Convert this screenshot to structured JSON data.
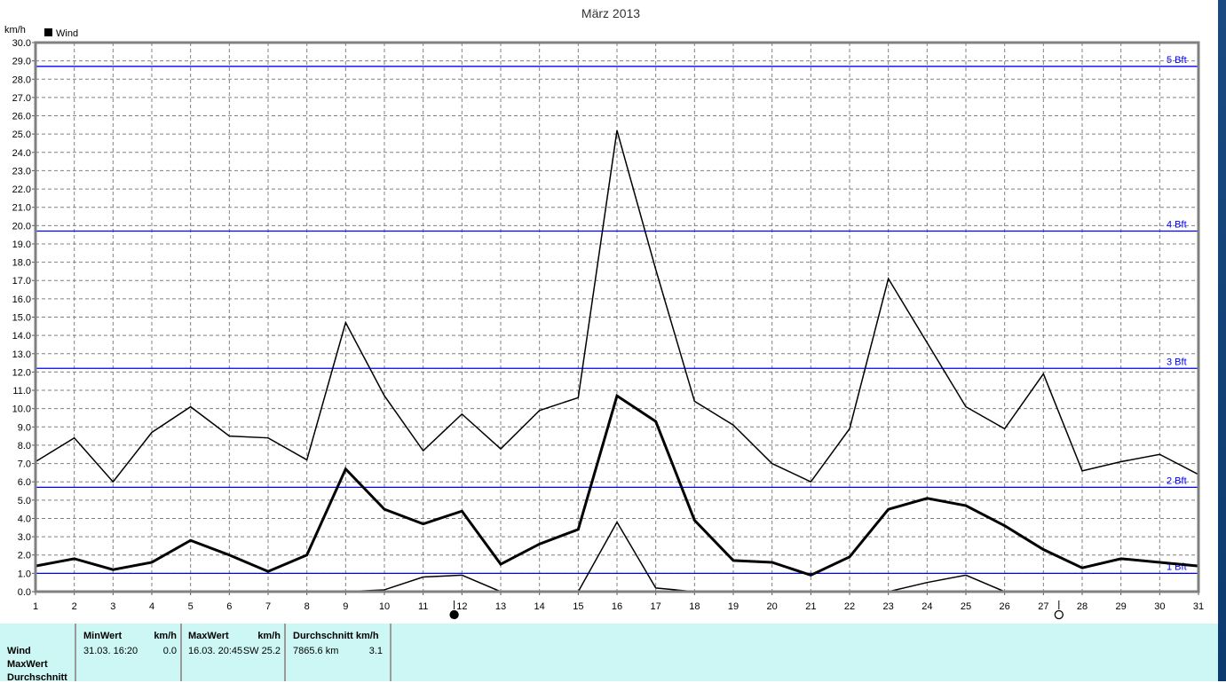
{
  "chart_data": {
    "type": "line",
    "title": "März 2013",
    "ylabel": "km/h",
    "legend": [
      "Wind"
    ],
    "legend_placement": "top-left",
    "ylim": [
      0,
      30
    ],
    "ytick_step": 1,
    "grid": true,
    "x": [
      1,
      2,
      3,
      4,
      5,
      6,
      7,
      8,
      9,
      10,
      11,
      12,
      13,
      14,
      15,
      16,
      17,
      18,
      19,
      20,
      21,
      22,
      23,
      24,
      25,
      26,
      27,
      28,
      29,
      30,
      31
    ],
    "series": [
      {
        "role": "max",
        "values": [
          7.1,
          8.4,
          6.0,
          8.7,
          10.1,
          8.5,
          8.4,
          7.2,
          14.7,
          10.7,
          7.7,
          9.7,
          7.8,
          9.9,
          10.6,
          25.2,
          17.6,
          10.4,
          9.1,
          7.0,
          6.0,
          8.9,
          17.1,
          13.6,
          10.1,
          8.9,
          11.9,
          6.6,
          7.1,
          7.5,
          6.4
        ]
      },
      {
        "role": "average",
        "values": [
          1.4,
          1.8,
          1.2,
          1.6,
          2.8,
          2.0,
          1.1,
          2.0,
          6.7,
          4.5,
          3.7,
          4.4,
          1.5,
          2.6,
          3.4,
          10.7,
          9.3,
          3.9,
          1.7,
          1.6,
          0.9,
          1.9,
          4.5,
          5.1,
          4.7,
          3.6,
          2.3,
          1.3,
          1.8,
          1.6,
          1.4
        ]
      },
      {
        "role": "min",
        "values": [
          0,
          0,
          0,
          0,
          0,
          0,
          0,
          0,
          0,
          0.1,
          0.8,
          0.9,
          0,
          0,
          0,
          3.8,
          0.2,
          0,
          0,
          0,
          0,
          0,
          0,
          0.5,
          0.9,
          0,
          0,
          0,
          0,
          0,
          0
        ]
      }
    ],
    "reference_lines": [
      {
        "label": "1 Bft",
        "value": 1.0
      },
      {
        "label": "2 Bft",
        "value": 5.7
      },
      {
        "label": "3 Bft",
        "value": 12.2
      },
      {
        "label": "4 Bft",
        "value": 19.7
      },
      {
        "label": "5 Bft",
        "value": 28.7
      }
    ],
    "moon_phases": [
      {
        "phase": "full-moon",
        "day": 11.8
      },
      {
        "phase": "new-moon",
        "day": 27.4
      }
    ],
    "colors": {
      "series": "#000000",
      "reference": "#0000ff",
      "grid": "#808080",
      "table_bg": "#ccf7f5"
    }
  },
  "table": {
    "row_labels": [
      "Wind",
      "MaxWert",
      "Durchschnitt"
    ],
    "headers": {
      "min": "MinWert",
      "min_unit": "km/h",
      "max": "MaxWert",
      "max_unit": "km/h",
      "avg": "Durchschnitt km/h"
    },
    "wind": {
      "min_time": "31.03.  16:20",
      "min_value": "0.0",
      "max_time": "16.03.  20:45",
      "max_value": "SW 25.2",
      "avg_distance": "7865.6 km",
      "avg_value": "3.1"
    }
  }
}
